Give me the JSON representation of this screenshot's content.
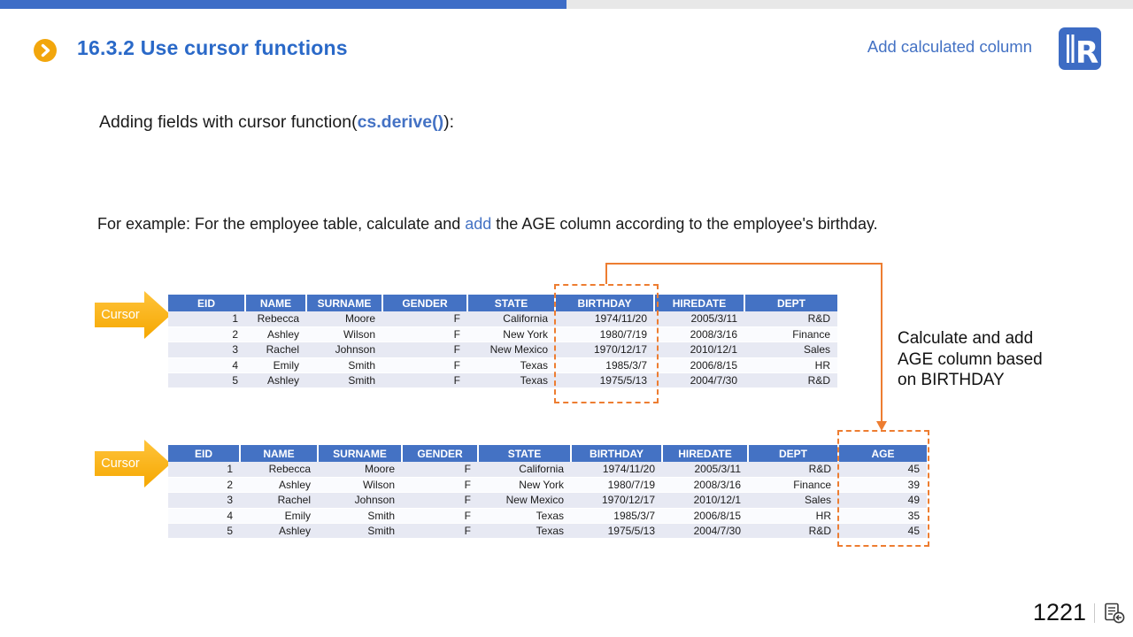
{
  "colors": {
    "accent_blue": "#4472C4",
    "top_bar_blue": "#3D6DC7",
    "top_bar_gray": "#E8E8E8",
    "dash_orange": "#ED7D31",
    "cursor_gold": "#FFB515"
  },
  "header": {
    "title": "16.3.2 Use cursor functions",
    "corner_link": "Add calculated column"
  },
  "intro": {
    "prefix": "Adding fields with cursor function(",
    "code": "cs.derive()",
    "suffix": "):"
  },
  "example": {
    "before": "For example: For the employee table, calculate and ",
    "highlight": "add",
    "after": " the AGE column according to the employee's birthday."
  },
  "arrows": {
    "label": "Cursor"
  },
  "table1": {
    "columns": [
      "EID",
      "NAME",
      "SURNAME",
      "GENDER",
      "STATE",
      "BIRTHDAY",
      "HIREDATE",
      "DEPT"
    ],
    "rows": [
      [
        "1",
        "Rebecca",
        "Moore",
        "F",
        "California",
        "1974/11/20",
        "2005/3/11",
        "R&D"
      ],
      [
        "2",
        "Ashley",
        "Wilson",
        "F",
        "New York",
        "1980/7/19",
        "2008/3/16",
        "Finance"
      ],
      [
        "3",
        "Rachel",
        "Johnson",
        "F",
        "New Mexico",
        "1970/12/17",
        "2010/12/1",
        "Sales"
      ],
      [
        "4",
        "Emily",
        "Smith",
        "F",
        "Texas",
        "1985/3/7",
        "2006/8/15",
        "HR"
      ],
      [
        "5",
        "Ashley",
        "Smith",
        "F",
        "Texas",
        "1975/5/13",
        "2004/7/30",
        "R&D"
      ]
    ]
  },
  "table2": {
    "columns": [
      "EID",
      "NAME",
      "SURNAME",
      "GENDER",
      "STATE",
      "BIRTHDAY",
      "HIREDATE",
      "DEPT",
      "AGE"
    ],
    "rows": [
      [
        "1",
        "Rebecca",
        "Moore",
        "F",
        "California",
        "1974/11/20",
        "2005/3/11",
        "R&D",
        "45"
      ],
      [
        "2",
        "Ashley",
        "Wilson",
        "F",
        "New York",
        "1980/7/19",
        "2008/3/16",
        "Finance",
        "39"
      ],
      [
        "3",
        "Rachel",
        "Johnson",
        "F",
        "New Mexico",
        "1970/12/17",
        "2010/12/1",
        "Sales",
        "49"
      ],
      [
        "4",
        "Emily",
        "Smith",
        "F",
        "Texas",
        "1985/3/7",
        "2006/8/15",
        "HR",
        "35"
      ],
      [
        "5",
        "Ashley",
        "Smith",
        "F",
        "Texas",
        "1975/5/13",
        "2004/7/30",
        "R&D",
        "45"
      ]
    ]
  },
  "annotation": {
    "line1": "Calculate and add",
    "line2": "AGE column based",
    "line3": "on BIRTHDAY"
  },
  "footer": {
    "page_number": "1221"
  }
}
